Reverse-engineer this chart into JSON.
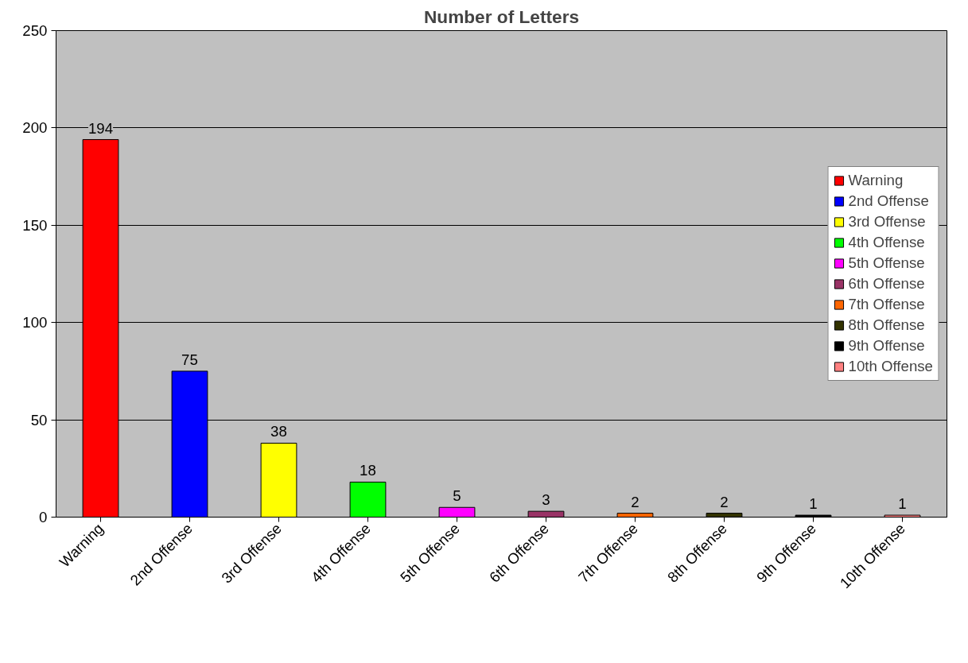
{
  "chart_data": {
    "type": "bar",
    "title": "Number of Letters",
    "categories": [
      "Warning",
      "2nd Offense",
      "3rd Offense",
      "4th Offense",
      "5th Offense",
      "6th Offense",
      "7th Offense",
      "8th Offense",
      "9th Offense",
      "10th Offense"
    ],
    "series": [
      {
        "name": "Warning",
        "color": "#ff0000",
        "values": [
          194,
          null,
          null,
          null,
          null,
          null,
          null,
          null,
          null,
          null
        ]
      },
      {
        "name": "2nd Offense",
        "color": "#0000ff",
        "values": [
          null,
          75,
          null,
          null,
          null,
          null,
          null,
          null,
          null,
          null
        ]
      },
      {
        "name": "3rd Offense",
        "color": "#ffff00",
        "values": [
          null,
          null,
          38,
          null,
          null,
          null,
          null,
          null,
          null,
          null
        ]
      },
      {
        "name": "4th Offense",
        "color": "#00ff00",
        "values": [
          null,
          null,
          null,
          18,
          null,
          null,
          null,
          null,
          null,
          null
        ]
      },
      {
        "name": "5th Offense",
        "color": "#ff00ff",
        "values": [
          null,
          null,
          null,
          null,
          5,
          null,
          null,
          null,
          null,
          null
        ]
      },
      {
        "name": "6th Offense",
        "color": "#993366",
        "values": [
          null,
          null,
          null,
          null,
          null,
          3,
          null,
          null,
          null,
          null
        ]
      },
      {
        "name": "7th Offense",
        "color": "#ff6600",
        "values": [
          null,
          null,
          null,
          null,
          null,
          null,
          2,
          null,
          null,
          null
        ]
      },
      {
        "name": "8th Offense",
        "color": "#333300",
        "values": [
          null,
          null,
          null,
          null,
          null,
          null,
          null,
          2,
          null,
          null
        ]
      },
      {
        "name": "9th Offense",
        "color": "#000000",
        "values": [
          null,
          null,
          null,
          null,
          null,
          null,
          null,
          null,
          1,
          null
        ]
      },
      {
        "name": "10th Offense",
        "color": "#ff8080",
        "values": [
          null,
          null,
          null,
          null,
          null,
          null,
          null,
          null,
          null,
          1
        ]
      }
    ],
    "ylim": [
      0,
      250
    ],
    "yticks": [
      0,
      50,
      100,
      150,
      200,
      250
    ],
    "grid": "y",
    "legend": "right",
    "data_labels": true
  }
}
